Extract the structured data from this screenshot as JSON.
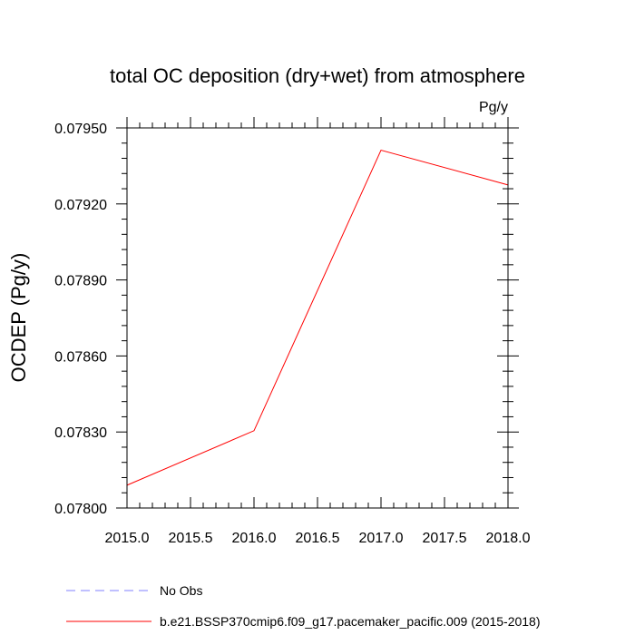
{
  "chart_data": {
    "type": "line",
    "title": "total OC deposition (dry+wet) from atmosphere",
    "units_label": "Pg/y",
    "ylabel": "OCDEP  (Pg/y)",
    "xlabel": "",
    "xlim": [
      2015.0,
      2018.0
    ],
    "ylim": [
      0.078,
      0.0795
    ],
    "x_ticks": [
      2015.0,
      2015.5,
      2016.0,
      2016.5,
      2017.0,
      2017.5,
      2018.0
    ],
    "x_tick_labels": [
      "2015.0",
      "2015.5",
      "2016.0",
      "2016.5",
      "2017.0",
      "2017.5",
      "2018.0"
    ],
    "y_ticks": [
      0.078,
      0.0783,
      0.0786,
      0.0789,
      0.0792,
      0.0795
    ],
    "y_tick_labels": [
      "0.07800",
      "0.07830",
      "0.07860",
      "0.07890",
      "0.07920",
      "0.07950"
    ],
    "series": [
      {
        "name": "b.e21.BSSP370cmip6.f09_g17.pacemaker_pacific.009 (2015-2018)",
        "color": "#ff0000",
        "dash": "solid",
        "x": [
          2015.0,
          2016.0,
          2017.0,
          2018.0
        ],
        "values": [
          0.07809,
          0.078305,
          0.079412,
          0.079275
        ]
      }
    ],
    "legend": [
      {
        "label": "No Obs",
        "color": "#8080ff",
        "dash": "dashed"
      },
      {
        "label": "b.e21.BSSP370cmip6.f09_g17.pacemaker_pacific.009 (2015-2018)",
        "color": "#ff0000",
        "dash": "solid"
      }
    ],
    "legend_position": "bottom"
  }
}
